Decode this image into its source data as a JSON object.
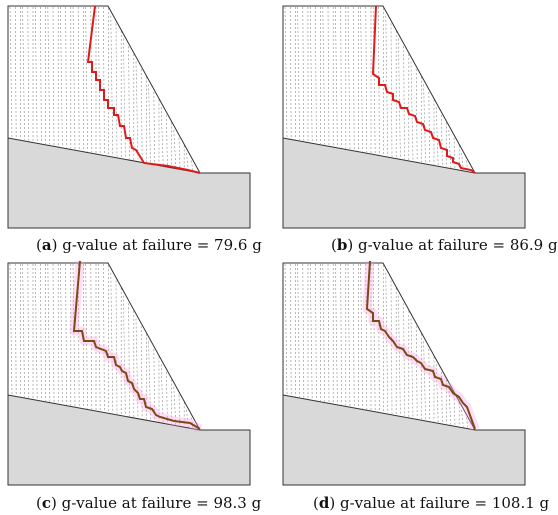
{
  "panels": [
    {
      "letter": "a",
      "label_pre": "(",
      "label_post": ") g-value at failure = ",
      "value": "79.6 g",
      "line_color": "#e0191b",
      "glow": false
    },
    {
      "letter": "b",
      "label_pre": "(",
      "label_post": ") g-value at failure = ",
      "value": "86.9 g",
      "line_color": "#e0191b",
      "glow": false
    },
    {
      "letter": "c",
      "label_pre": "(",
      "label_post": ") g-value at failure = ",
      "value": "98.3 g",
      "line_color": "#7a4a12",
      "glow": true
    },
    {
      "letter": "d",
      "label_pre": "(",
      "label_post": ") g-value at failure = ",
      "value": "108.1 g",
      "line_color": "#7a4a12",
      "glow": true
    }
  ],
  "colors": {
    "ground": "#d9d9d9",
    "outline": "#333333",
    "grid": "#888888",
    "glow": "#ff9fe8"
  }
}
